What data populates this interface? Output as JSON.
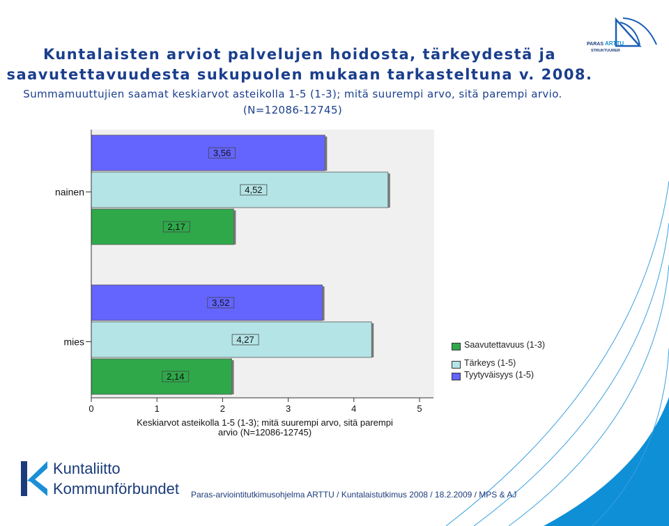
{
  "header": {
    "title_line1": "Kuntalaisten arviot palvelujen hoidosta, tärkeydestä ja",
    "title_line2": "saavutettavuudesta sukupuolen mukaan tarkasteltuna v. 2008.",
    "subtitle_line1": "Summamuuttujien saamat keskiarvot asteikolla 1-5 (1-3); mitä suurempi arvo, sitä parempi arvio.",
    "subtitle_line2": "(N=12086-12745)"
  },
  "logos": {
    "top_right_text1": "PARAS",
    "top_right_text2": "ARTTU",
    "top_right_text3": "STRUKTUURER",
    "bottom_left_line1": "Kuntaliitto",
    "bottom_left_line2": "Kommunförbundet"
  },
  "footer": {
    "text": "Paras-arviointitutkimusohjelma ARTTU / Kuntalaistutkimus 2008 / 18.2.2009 / MPS & AJ"
  },
  "colors": {
    "title": "#1a3e8c",
    "saavutettavuus": "#2fa84a",
    "tarkeys": "#b4e4e6",
    "tyytyvaisyys": "#6464ff",
    "plot_bg": "#f0f0f0",
    "deco_blue": "#0e8fd6"
  },
  "chart_data": {
    "type": "bar",
    "orientation": "horizontal",
    "categories": [
      "nainen",
      "mies"
    ],
    "series": [
      {
        "name": "Tyytyväisyys (1-5)",
        "values": [
          3.56,
          3.52
        ],
        "labels": [
          "3,56",
          "3,52"
        ],
        "color": "#6464ff"
      },
      {
        "name": "Tärkeys (1-5)",
        "values": [
          4.52,
          4.27
        ],
        "labels": [
          "4,52",
          "4,27"
        ],
        "color": "#b4e4e6"
      },
      {
        "name": "Saavutettavuus (1-3)",
        "values": [
          2.17,
          2.14
        ],
        "labels": [
          "2,17",
          "2,14"
        ],
        "color": "#2fa84a"
      }
    ],
    "legend_order": [
      "Saavutettavuus (1-3)",
      "Tärkeys (1-5)",
      "Tyytyväisyys (1-5)"
    ],
    "xticks": [
      "0",
      "1",
      "2",
      "3",
      "4",
      "5"
    ],
    "xlim": [
      0,
      5
    ],
    "xlabel_line1": "Keskiarvot asteikolla 1-5 (1-3); mitä suurempi arvo, sitä parempi",
    "xlabel_line2": "arvio (N=12086-12745)",
    "legend_position": "right"
  }
}
